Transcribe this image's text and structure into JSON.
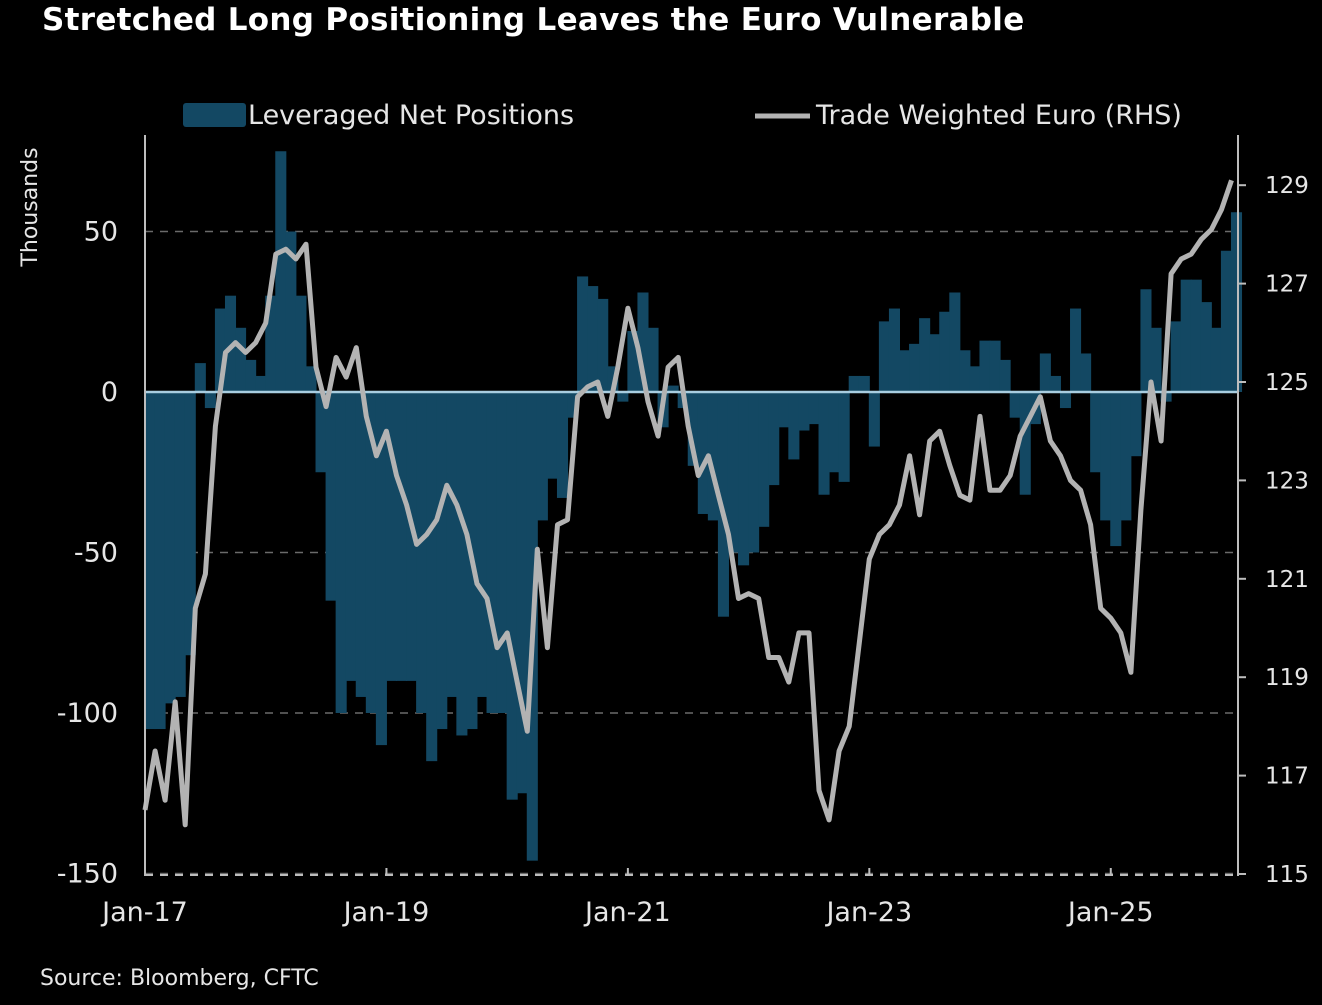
{
  "title": "Stretched Long Positioning Leaves the Euro Vulnerable",
  "source": "Source: Bloomberg, CFTC",
  "colors": {
    "bars": "#134863",
    "line": "#b3b3b3",
    "zero_line": "#a8cde0",
    "grid": "#6a6a6a"
  },
  "chart_data": {
    "type": "bar+line",
    "title": "Stretched Long Positioning Leaves the Euro Vulnerable",
    "ylabel": "Thousands",
    "ylabel_right": "",
    "xlabel": "",
    "x_start": "Jan-17",
    "x_frequency": "monthly",
    "x_ticks": [
      "Jan-17",
      "Jan-19",
      "Jan-21",
      "Jan-23",
      "Jan-25"
    ],
    "y_ticks": [
      50,
      0,
      -50,
      -100,
      -150
    ],
    "y_ticks_right": [
      129,
      127,
      125,
      123,
      121,
      119,
      117,
      115
    ],
    "ylim": [
      -150,
      80
    ],
    "ylim_right": [
      115,
      129.8
    ],
    "grid": "horizontal dashed",
    "legend_position": "top",
    "series": [
      {
        "name": "Leveraged Net Positions",
        "type": "bar",
        "axis": "left",
        "values": [
          -105,
          -105,
          -97,
          -95,
          -82,
          9,
          -5,
          26,
          30,
          20,
          10,
          5,
          30,
          75,
          50,
          30,
          8,
          -25,
          -65,
          -100,
          -90,
          -95,
          -100,
          -110,
          -90,
          -90,
          -90,
          -100,
          -115,
          -105,
          -95,
          -107,
          -105,
          -95,
          -100,
          -100,
          -127,
          -125,
          -146,
          -40,
          -27,
          -33,
          -8,
          36,
          33,
          29,
          8,
          -3,
          19,
          31,
          20,
          -11,
          2,
          -5,
          -23,
          -38,
          -40,
          -70,
          -50,
          -54,
          -50,
          -42,
          -29,
          -11,
          -21,
          -12,
          -10,
          -32,
          -25,
          -28,
          5,
          5,
          -17,
          22,
          26,
          13,
          15,
          23,
          18,
          25,
          31,
          13,
          8,
          16,
          16,
          10,
          -8,
          -32,
          -10,
          12,
          5,
          -5,
          26,
          12,
          -25,
          -40,
          -48,
          -40,
          -20,
          32,
          20,
          -3,
          22,
          35,
          35,
          28,
          20,
          44,
          56
        ]
      },
      {
        "name": "Trade Weighted Euro (RHS)",
        "type": "line",
        "axis": "right",
        "values": [
          116.3,
          117.5,
          116.5,
          118.5,
          116.0,
          120.4,
          121.1,
          124.1,
          125.6,
          125.8,
          125.6,
          125.8,
          126.2,
          127.6,
          127.7,
          127.5,
          127.8,
          125.3,
          124.5,
          125.5,
          125.1,
          125.7,
          124.3,
          123.5,
          124.0,
          123.1,
          122.5,
          121.7,
          121.9,
          122.2,
          122.9,
          122.5,
          121.9,
          120.9,
          120.6,
          119.6,
          119.9,
          118.9,
          117.9,
          121.6,
          119.6,
          122.1,
          122.2,
          124.7,
          124.9,
          125.0,
          124.3,
          125.3,
          126.5,
          125.7,
          124.6,
          123.9,
          125.3,
          125.5,
          124.1,
          123.1,
          123.5,
          122.7,
          121.9,
          120.6,
          120.7,
          120.6,
          119.4,
          119.4,
          118.9,
          119.9,
          119.9,
          116.7,
          116.1,
          117.5,
          118.0,
          119.7,
          121.4,
          121.9,
          122.1,
          122.5,
          123.5,
          122.3,
          123.8,
          124.0,
          123.3,
          122.7,
          122.6,
          124.3,
          122.8,
          122.8,
          123.1,
          123.9,
          124.3,
          124.7,
          123.8,
          123.5,
          123.0,
          122.8,
          122.1,
          120.4,
          120.2,
          119.9,
          119.1,
          122.4,
          125.0,
          123.8,
          127.2,
          127.5,
          127.6,
          127.9,
          128.1,
          128.5,
          129.1
        ]
      }
    ]
  }
}
